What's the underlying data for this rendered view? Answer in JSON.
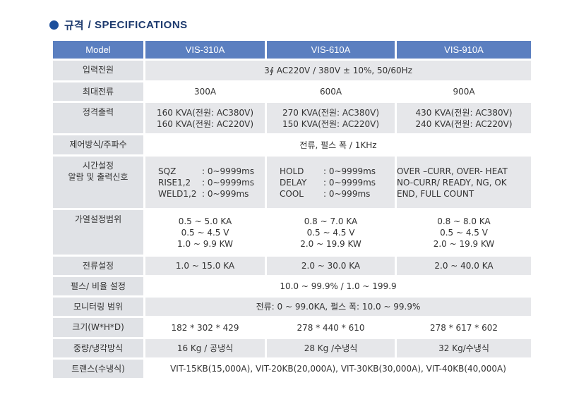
{
  "header": {
    "title": "규격",
    "subtitle": "/ SPECIFICATIONS"
  },
  "table": {
    "columns": [
      "Model",
      "VIS-310A",
      "VIS-610A",
      "VIS-910A"
    ],
    "rows": [
      [
        "입력전원",
        "3∮ AC220V / 380V ± 10%,  50/60Hz"
      ],
      [
        "최대전류",
        "300A",
        "600A",
        "900A"
      ],
      [
        "정격출력",
        [
          "160 KVA(전원: AC380V)",
          "160 KVA(전원: AC220V)"
        ],
        [
          "270 KVA(전원: AC380V)",
          "150 KVA(전원: AC220V)"
        ],
        [
          "430 KVA(전원: AC380V)",
          "240 KVA(전원: AC220V)"
        ]
      ],
      [
        "제어방식/주파수",
        "전류, 펄스 폭 / 1KHz"
      ],
      [
        [
          "시간설정",
          "알람 및 출력신호"
        ],
        [
          [
            "SQZ",
            ": 0~9999ms"
          ],
          [
            "RISE1,2",
            ": 0~9999ms"
          ],
          [
            "WELD1,2",
            ": 0~999ms"
          ]
        ],
        [
          [
            "HOLD",
            ": 0~9999ms"
          ],
          [
            "DELAY",
            ": 0~9999ms"
          ],
          [
            "COOL",
            ": 0~999ms"
          ]
        ],
        [
          "OVER –CURR, OVER- HEAT",
          "NO-CURR/ READY, NG, OK",
          "END, FULL COUNT"
        ]
      ],
      [
        "가열설정범위",
        [
          "0.5 ~ 5.0 KA",
          "0.5 ~ 4.5   V",
          "1.0 ~ 9.9 KW"
        ],
        [
          "0.8 ~ 7.0 KA",
          "0.5 ~ 4.5   V",
          "2.0 ~ 19.9 KW"
        ],
        [
          "0.8 ~ 8.0 KA",
          "0.5 ~ 4.5   V",
          "2.0 ~ 19.9 KW"
        ]
      ],
      [
        "전류설정",
        "1.0 ~ 15.0 KA",
        "2.0 ~ 30.0 KA",
        "2.0 ~ 40.0 KA"
      ],
      [
        "펄스/ 비율 설정",
        "10.0 ~ 99.9% / 1.0 ~ 199.9"
      ],
      [
        "모니터링 범위",
        "전류: 0 ~ 99.0KA, 펄스 폭: 10.0 ~ 99.9%"
      ],
      [
        "크기(W*H*D)",
        "182 * 302 * 429",
        "278 * 440 * 610",
        "278 * 617 * 602"
      ],
      [
        "중량/냉각방식",
        "16 Kg / 공냉식",
        "28 Kg /수냉식",
        "32 Kg/수냉식"
      ],
      [
        "트랜스(수냉식)",
        "VIT-15KB(15,000A), VIT-20KB(20,000A), VIT-30KB(30,000A), VIT-40KB(40,000A)"
      ]
    ]
  }
}
